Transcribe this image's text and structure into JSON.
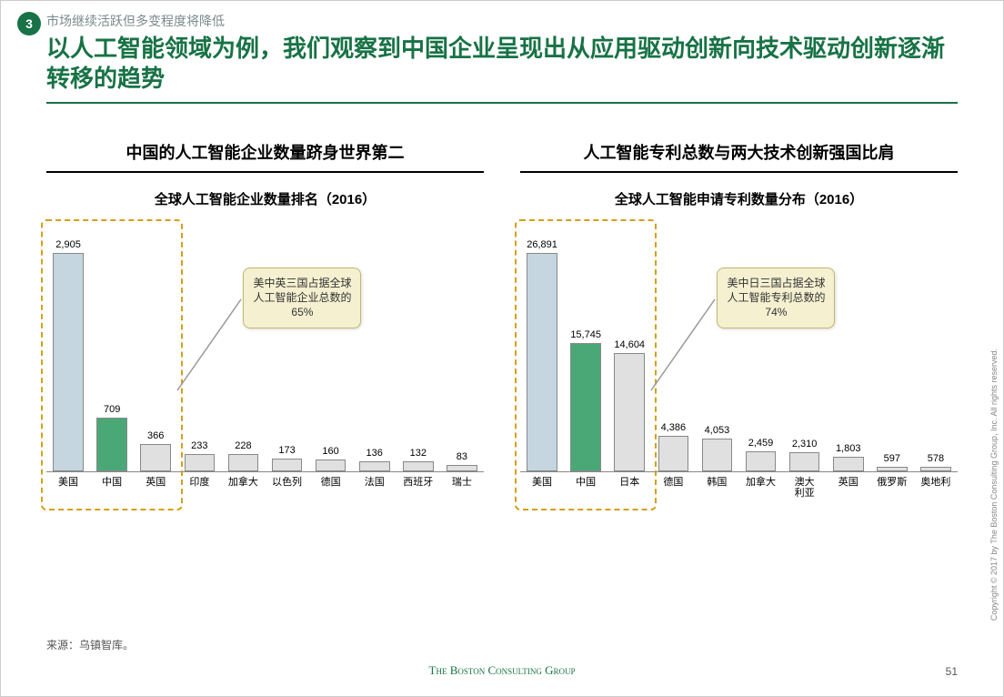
{
  "header": {
    "badge": "3",
    "subtitle": "市场继续活跃但多变程度将降低",
    "title": "以人工智能领域为例，我们观察到中国企业呈现出从应用驱动创新向技术驱动创新逐渐转移的趋势"
  },
  "chart_left": {
    "type": "bar",
    "heading": "中国的人工智能企业数量跻身世界第二",
    "subheading": "全球人工智能企业数量排名（2016）",
    "categories": [
      "美国",
      "中国",
      "英国",
      "印度",
      "加拿大",
      "以色列",
      "德国",
      "法国",
      "西班牙",
      "瑞士"
    ],
    "values": [
      2905,
      709,
      366,
      233,
      228,
      173,
      160,
      136,
      132,
      83
    ],
    "value_labels": [
      "2,905",
      "709",
      "366",
      "233",
      "228",
      "173",
      "160",
      "136",
      "132",
      "83"
    ],
    "bar_colors": [
      "#c5d6e0",
      "#4aa877",
      "#e0e0e0",
      "#e0e0e0",
      "#e0e0e0",
      "#e0e0e0",
      "#e0e0e0",
      "#e0e0e0",
      "#e0e0e0",
      "#e0e0e0"
    ],
    "max_value": 2905,
    "highlight_count": 3,
    "highlight_border_color": "#d4a017",
    "callout": "美中英三国占据全球\n人工智能企业总数的\n65%",
    "callout_bg": "#f5f0d0",
    "background_color": "#ffffff",
    "label_fontsize": 11,
    "value_fontsize": 11
  },
  "chart_right": {
    "type": "bar",
    "heading": "人工智能专利总数与两大技术创新强国比肩",
    "subheading": "全球人工智能申请专利数量分布（2016）",
    "categories": [
      "美国",
      "中国",
      "日本",
      "德国",
      "韩国",
      "加拿大",
      "澳大利亚",
      "英国",
      "俄罗斯",
      "奥地利"
    ],
    "values": [
      26891,
      15745,
      14604,
      4386,
      4053,
      2459,
      2310,
      1803,
      597,
      578
    ],
    "value_labels": [
      "26,891",
      "15,745",
      "14,604",
      "4,386",
      "4,053",
      "2,459",
      "2,310",
      "1,803",
      "597",
      "578"
    ],
    "bar_colors": [
      "#c5d6e0",
      "#4aa877",
      "#e0e0e0",
      "#e0e0e0",
      "#e0e0e0",
      "#e0e0e0",
      "#e0e0e0",
      "#e0e0e0",
      "#e0e0e0",
      "#e0e0e0"
    ],
    "max_value": 26891,
    "highlight_count": 3,
    "highlight_border_color": "#d4a017",
    "callout": "美中日三国占据全球\n人工智能专利总数的\n74%",
    "callout_bg": "#f5f0d0",
    "background_color": "#ffffff",
    "label_fontsize": 11,
    "value_fontsize": 11
  },
  "footer": {
    "source": "来源：乌镇智库。",
    "brand_prefix": "T",
    "brand_rest": "he Boston Consulting Group",
    "page": "51",
    "copyright": "Copyright © 2017 by The Boston Consulting Group, Inc. All rights reserved."
  },
  "colors": {
    "accent_green": "#177245",
    "bar_highlight": "#4aa877",
    "bar_default": "#e0e0e0",
    "bar_first": "#c5d6e0"
  }
}
